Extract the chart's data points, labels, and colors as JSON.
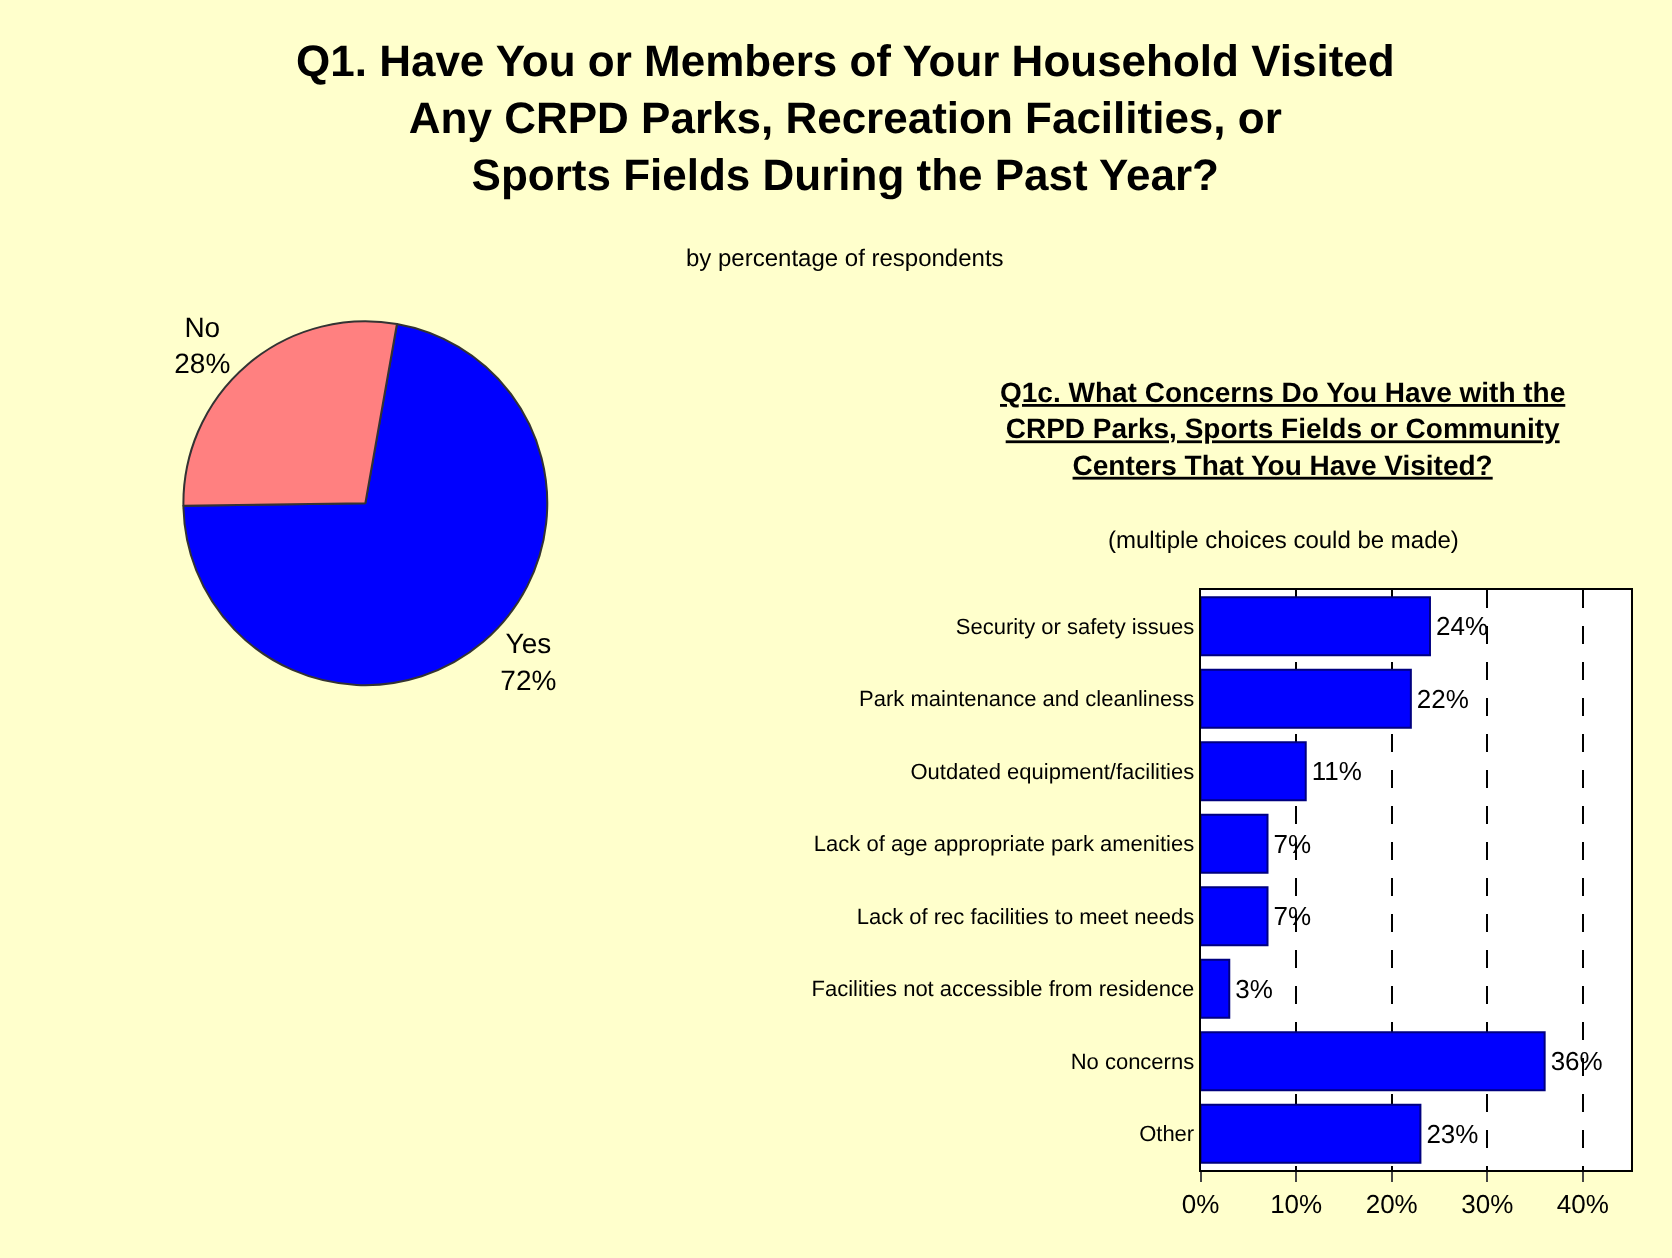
{
  "chart_data": [
    {
      "type": "pie",
      "title": "Q1. Have You or Members of Your Household Visited\nAny CRPD Parks, Recreation Facilities, or\nSports Fields During the Past Year?",
      "subtitle": "by percentage of respondents",
      "categories": [
        "Yes",
        "No"
      ],
      "values": [
        72,
        28
      ],
      "value_labels": [
        "72%",
        "28%"
      ],
      "colors": [
        "#0000ff",
        "#ff8080"
      ]
    },
    {
      "type": "bar",
      "orientation": "horizontal",
      "title": "Q1c. What Concerns Do You Have with the\nCRPD Parks, Sports Fields or Community\nCenters That You Have Visited?",
      "subtitle": "(multiple choices could be made)",
      "categories": [
        "Security or safety issues",
        "Park maintenance and cleanliness",
        "Outdated equipment/facilities",
        "Lack of age appropriate park amenities",
        "Lack of rec facilities to meet needs",
        "Facilities not accessible from residence",
        "No concerns",
        "Other"
      ],
      "values": [
        24,
        22,
        11,
        7,
        7,
        3,
        36,
        23
      ],
      "value_labels": [
        "24%",
        "22%",
        "11%",
        "7%",
        "7%",
        "3%",
        "36%",
        "23%"
      ],
      "color": "#0000ff",
      "xlim": [
        0,
        45
      ],
      "xticks": [
        {
          "value": 0,
          "label": "0%"
        },
        {
          "value": 10,
          "label": "10%"
        },
        {
          "value": 20,
          "label": "20%"
        },
        {
          "value": 30,
          "label": "30%"
        },
        {
          "value": 40,
          "label": "40%"
        }
      ],
      "grid": "x"
    }
  ]
}
